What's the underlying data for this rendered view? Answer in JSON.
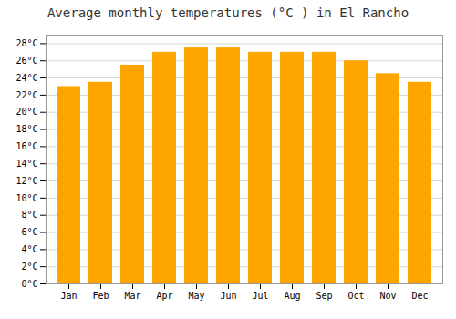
{
  "chart_data": {
    "type": "bar",
    "title": "Average monthly temperatures (°C ) in El Rancho",
    "categories": [
      "Jan",
      "Feb",
      "Mar",
      "Apr",
      "May",
      "Jun",
      "Jul",
      "Aug",
      "Sep",
      "Oct",
      "Nov",
      "Dec"
    ],
    "values": [
      23.0,
      23.5,
      25.5,
      27.0,
      27.5,
      27.5,
      27.0,
      27.0,
      27.0,
      26.0,
      24.5,
      23.5
    ],
    "color": "#FFA500",
    "ylim": [
      0,
      29
    ],
    "yticks": [
      {
        "value": 0,
        "label": "0°C"
      },
      {
        "value": 2,
        "label": "2°C"
      },
      {
        "value": 4,
        "label": "4°C"
      },
      {
        "value": 6,
        "label": "6°C"
      },
      {
        "value": 8,
        "label": "8°C"
      },
      {
        "value": 10,
        "label": "10°C"
      },
      {
        "value": 12,
        "label": "12°C"
      },
      {
        "value": 14,
        "label": "14°C"
      },
      {
        "value": 16,
        "label": "16°C"
      },
      {
        "value": 18,
        "label": "18°C"
      },
      {
        "value": 20,
        "label": "20°C"
      },
      {
        "value": 22,
        "label": "22°C"
      },
      {
        "value": 24,
        "label": "24°C"
      },
      {
        "value": 26,
        "label": "26°C"
      },
      {
        "value": 28,
        "label": "28°C"
      }
    ],
    "grid": true
  }
}
